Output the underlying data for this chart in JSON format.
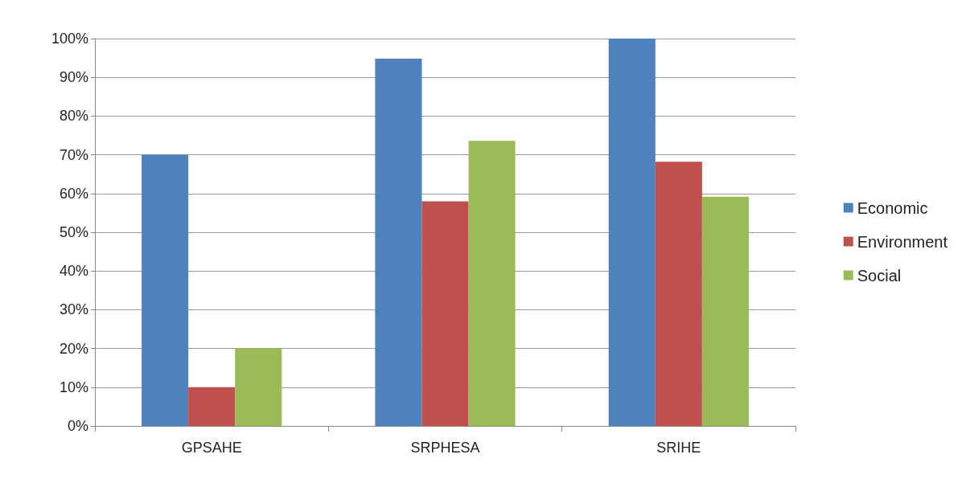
{
  "chart_data": {
    "type": "bar",
    "categories": [
      "GPSAHE",
      "SRPHESA",
      "SRIHE"
    ],
    "series": [
      {
        "name": "Economic",
        "color": "#4f81bd",
        "values": [
          70,
          94.8,
          100
        ]
      },
      {
        "name": "Environment",
        "color": "#c0504d",
        "values": [
          10,
          58,
          68.2
        ]
      },
      {
        "name": "Social",
        "color": "#9bbb59",
        "values": [
          20,
          73.6,
          59.2
        ]
      }
    ],
    "ylim": [
      0,
      100
    ],
    "yticks": [
      {
        "value": 0,
        "label": "0%"
      },
      {
        "value": 10,
        "label": "10%"
      },
      {
        "value": 20,
        "label": "20%"
      },
      {
        "value": 30,
        "label": "30%"
      },
      {
        "value": 40,
        "label": "40%"
      },
      {
        "value": 50,
        "label": "50%"
      },
      {
        "value": 60,
        "label": "60%"
      },
      {
        "value": 70,
        "label": "70%"
      },
      {
        "value": 80,
        "label": "80%"
      },
      {
        "value": 90,
        "label": "90%"
      },
      {
        "value": 100,
        "label": "100%"
      }
    ],
    "grid": "y",
    "legend": "right"
  }
}
